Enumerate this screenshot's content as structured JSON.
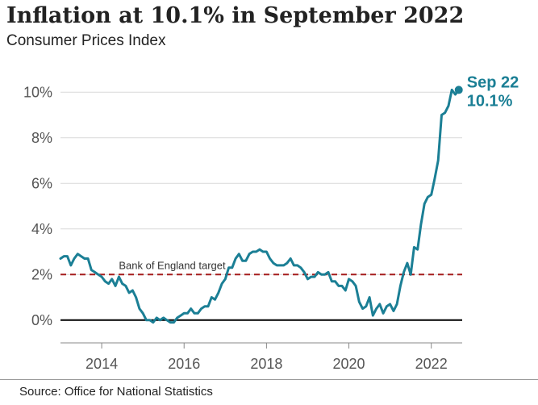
{
  "header": {
    "title": "Inflation at 10.1% in September 2022",
    "subtitle": "Consumer Prices Index"
  },
  "footer": {
    "source": "Source: Office for National Statistics"
  },
  "colors": {
    "series": "#1b7f95",
    "target": "#a51c1c",
    "grid": "#d9d9d9",
    "zero": "#000000"
  },
  "chart_data": {
    "type": "line",
    "title": "Inflation at 10.1% in September 2022",
    "subtitle": "Consumer Prices Index",
    "xlabel": "",
    "ylabel": "",
    "xlim": [
      "2013-01",
      "2022-10"
    ],
    "ylim": [
      -1,
      11
    ],
    "grid": true,
    "x_ticks": [
      {
        "x": "2014-01",
        "label": "2014"
      },
      {
        "x": "2016-01",
        "label": "2016"
      },
      {
        "x": "2018-01",
        "label": "2018"
      },
      {
        "x": "2020-01",
        "label": "2020"
      },
      {
        "x": "2022-01",
        "label": "2022"
      }
    ],
    "y_ticks": [
      {
        "y": 0,
        "label": "0%"
      },
      {
        "y": 2,
        "label": "2%"
      },
      {
        "y": 4,
        "label": "4%"
      },
      {
        "y": 6,
        "label": "6%"
      },
      {
        "y": 8,
        "label": "8%"
      },
      {
        "y": 10,
        "label": "10%"
      }
    ],
    "reference_line": {
      "y": 2,
      "label": "Bank of England target"
    },
    "callout": {
      "x": "2022-09",
      "y": 10.1,
      "line1": "Sep 22",
      "line2": "10.1%"
    },
    "series": [
      {
        "name": "",
        "x": [
          "2013-01",
          "2013-02",
          "2013-03",
          "2013-04",
          "2013-05",
          "2013-06",
          "2013-07",
          "2013-08",
          "2013-09",
          "2013-10",
          "2013-11",
          "2013-12",
          "2014-01",
          "2014-02",
          "2014-03",
          "2014-04",
          "2014-05",
          "2014-06",
          "2014-07",
          "2014-08",
          "2014-09",
          "2014-10",
          "2014-11",
          "2014-12",
          "2015-01",
          "2015-02",
          "2015-03",
          "2015-04",
          "2015-05",
          "2015-06",
          "2015-07",
          "2015-08",
          "2015-09",
          "2015-10",
          "2015-11",
          "2015-12",
          "2016-01",
          "2016-02",
          "2016-03",
          "2016-04",
          "2016-05",
          "2016-06",
          "2016-07",
          "2016-08",
          "2016-09",
          "2016-10",
          "2016-11",
          "2016-12",
          "2017-01",
          "2017-02",
          "2017-03",
          "2017-04",
          "2017-05",
          "2017-06",
          "2017-07",
          "2017-08",
          "2017-09",
          "2017-10",
          "2017-11",
          "2017-12",
          "2018-01",
          "2018-02",
          "2018-03",
          "2018-04",
          "2018-05",
          "2018-06",
          "2018-07",
          "2018-08",
          "2018-09",
          "2018-10",
          "2018-11",
          "2018-12",
          "2019-01",
          "2019-02",
          "2019-03",
          "2019-04",
          "2019-05",
          "2019-06",
          "2019-07",
          "2019-08",
          "2019-09",
          "2019-10",
          "2019-11",
          "2019-12",
          "2020-01",
          "2020-02",
          "2020-03",
          "2020-04",
          "2020-05",
          "2020-06",
          "2020-07",
          "2020-08",
          "2020-09",
          "2020-10",
          "2020-11",
          "2020-12",
          "2021-01",
          "2021-02",
          "2021-03",
          "2021-04",
          "2021-05",
          "2021-06",
          "2021-07",
          "2021-08",
          "2021-09",
          "2021-10",
          "2021-11",
          "2021-12",
          "2022-01",
          "2022-02",
          "2022-03",
          "2022-04",
          "2022-05",
          "2022-06",
          "2022-07",
          "2022-08",
          "2022-09"
        ],
        "values": [
          2.7,
          2.8,
          2.8,
          2.4,
          2.7,
          2.9,
          2.8,
          2.7,
          2.7,
          2.2,
          2.1,
          2.0,
          1.9,
          1.7,
          1.6,
          1.8,
          1.5,
          1.9,
          1.6,
          1.5,
          1.2,
          1.3,
          1.0,
          0.5,
          0.3,
          0.0,
          0.0,
          -0.1,
          0.1,
          0.0,
          0.1,
          0.0,
          -0.1,
          -0.1,
          0.1,
          0.2,
          0.3,
          0.3,
          0.5,
          0.3,
          0.3,
          0.5,
          0.6,
          0.6,
          1.0,
          0.9,
          1.2,
          1.6,
          1.8,
          2.3,
          2.3,
          2.7,
          2.9,
          2.6,
          2.6,
          2.9,
          3.0,
          3.0,
          3.1,
          3.0,
          3.0,
          2.7,
          2.5,
          2.4,
          2.4,
          2.4,
          2.5,
          2.7,
          2.4,
          2.4,
          2.3,
          2.1,
          1.8,
          1.9,
          1.9,
          2.1,
          2.0,
          2.0,
          2.1,
          1.7,
          1.7,
          1.5,
          1.5,
          1.3,
          1.8,
          1.7,
          1.5,
          0.8,
          0.5,
          0.6,
          1.0,
          0.2,
          0.5,
          0.7,
          0.3,
          0.6,
          0.7,
          0.4,
          0.7,
          1.5,
          2.1,
          2.5,
          2.0,
          3.2,
          3.1,
          4.2,
          5.1,
          5.4,
          5.5,
          6.2,
          7.0,
          9.0,
          9.1,
          9.4,
          10.1,
          9.9,
          10.1
        ]
      }
    ]
  }
}
